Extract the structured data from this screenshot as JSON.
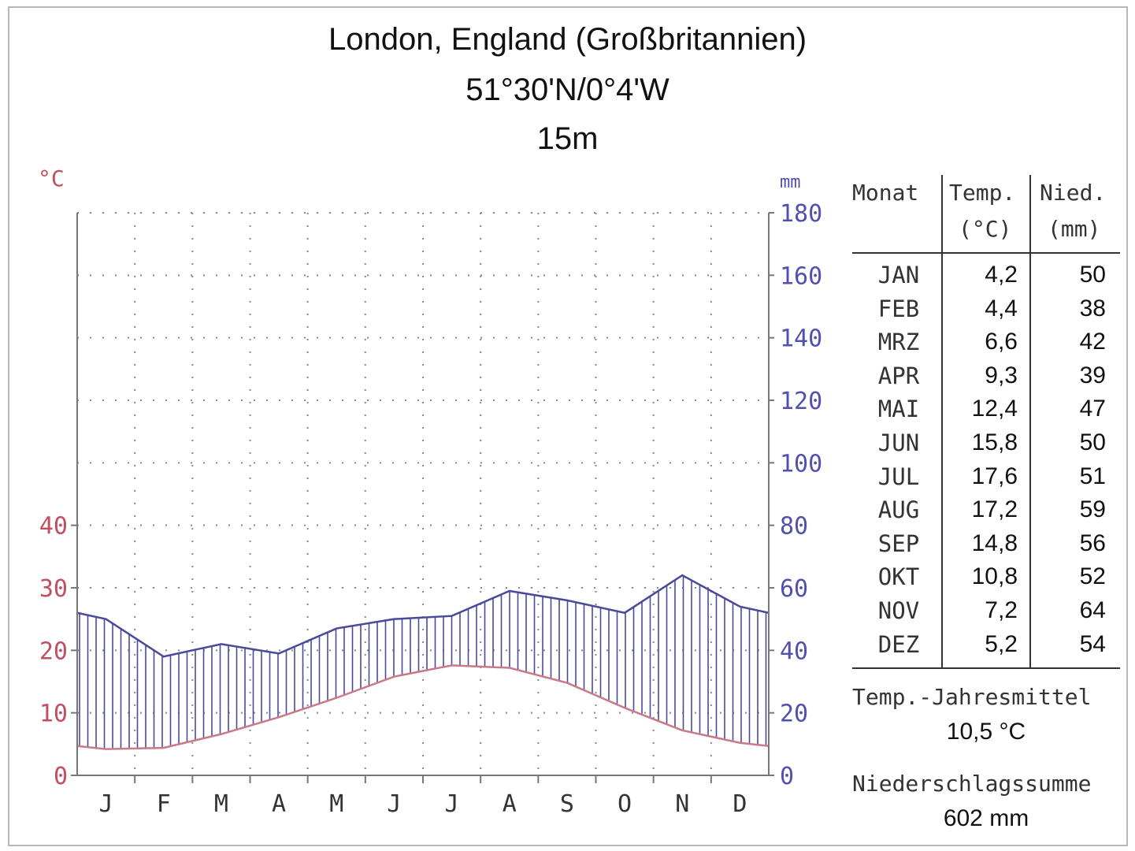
{
  "header": {
    "location": "London, England (Großbritannien)",
    "coordinates": "51°30'N/0°4'W",
    "elevation": "15m"
  },
  "chart_data": {
    "type": "line",
    "title": "London, England (Großbritannien)",
    "x": [
      "J",
      "F",
      "M",
      "A",
      "M",
      "J",
      "J",
      "A",
      "S",
      "O",
      "N",
      "D"
    ],
    "y_left": {
      "label": "°C",
      "range": [
        0,
        90
      ],
      "ticks": [
        0,
        10,
        20,
        30,
        40
      ]
    },
    "y_right": {
      "label": "mm",
      "range": [
        0,
        180
      ],
      "ticks": [
        0,
        20,
        40,
        60,
        80,
        100,
        120,
        140,
        160,
        180
      ]
    },
    "series": [
      {
        "name": "Temp. (°C)",
        "axis": "left",
        "color": "#c87a86",
        "values": [
          4.2,
          4.4,
          6.6,
          9.3,
          12.4,
          15.8,
          17.6,
          17.2,
          14.8,
          10.8,
          7.2,
          5.2
        ]
      },
      {
        "name": "Nied. (mm)",
        "axis": "right",
        "color": "#4a4a9a",
        "values": [
          50,
          38,
          42,
          39,
          47,
          50,
          51,
          59,
          56,
          52,
          64,
          54
        ]
      }
    ],
    "grid": true
  },
  "axis_labels": {
    "left_unit": "°C",
    "right_unit": "mm"
  },
  "table": {
    "headers": {
      "month": "Monat",
      "temp_1": "Temp.",
      "temp_2": "(°C)",
      "prec_1": "Nied.",
      "prec_2": "(mm)"
    },
    "rows": [
      {
        "month": "JAN",
        "temp": "4,2",
        "prec": "50"
      },
      {
        "month": "FEB",
        "temp": "4,4",
        "prec": "38"
      },
      {
        "month": "MRZ",
        "temp": "6,6",
        "prec": "42"
      },
      {
        "month": "APR",
        "temp": "9,3",
        "prec": "39"
      },
      {
        "month": "MAI",
        "temp": "12,4",
        "prec": "47"
      },
      {
        "month": "JUN",
        "temp": "15,8",
        "prec": "50"
      },
      {
        "month": "JUL",
        "temp": "17,6",
        "prec": "51"
      },
      {
        "month": "AUG",
        "temp": "17,2",
        "prec": "59"
      },
      {
        "month": "SEP",
        "temp": "14,8",
        "prec": "56"
      },
      {
        "month": "OKT",
        "temp": "10,8",
        "prec": "52"
      },
      {
        "month": "NOV",
        "temp": "7,2",
        "prec": "64"
      },
      {
        "month": "DEZ",
        "temp": "5,2",
        "prec": "54"
      }
    ]
  },
  "summary": {
    "temp_label": "Temp.-Jahresmittel",
    "temp_value": "10,5 °C",
    "prec_label": "Niederschlagssumme",
    "prec_value": "602 mm"
  },
  "colors": {
    "temp": "#c87a86",
    "prec": "#4a4a9a",
    "grid": "#888888",
    "axis_left_text": "#c05060",
    "axis_right_text": "#5050b0"
  }
}
